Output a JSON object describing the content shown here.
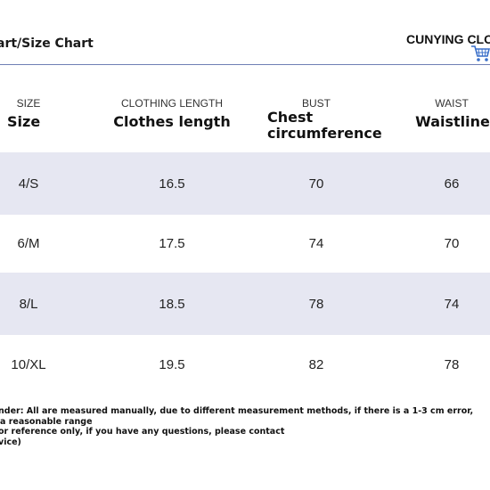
{
  "header": {
    "title": "art/Size Chart",
    "brand": "CUNYING CLO",
    "cart_icon": "shopping-cart-icon"
  },
  "table": {
    "columns": [
      {
        "en": "SIZE",
        "zh": "Size"
      },
      {
        "en": "CLOTHING LENGTH",
        "zh": "Clothes length"
      },
      {
        "en": "BUST",
        "zh_line1": "Chest",
        "zh_line2": "circumference"
      },
      {
        "en": "WAIST",
        "zh": "Waistline"
      }
    ],
    "rows": [
      {
        "size": "4/S",
        "length": "16.5",
        "bust": "70",
        "waist": "66"
      },
      {
        "size": "6/M",
        "length": "17.5",
        "bust": "74",
        "waist": "70"
      },
      {
        "size": "8/L",
        "length": "18.5",
        "bust": "78",
        "waist": "74"
      },
      {
        "size": "10/XL",
        "length": "19.5",
        "bust": "82",
        "waist": "78"
      }
    ]
  },
  "notes": {
    "line1": "nder: All are measured manually, due to different measurement methods, if there is a 1-3 cm error,",
    "line2": "a reasonable range",
    "line3": "or reference only, if you have any questions, please contact",
    "line4": "vice)"
  },
  "colors": {
    "row_shade": "#e6e7f2",
    "rule": "#6f7fb5",
    "cart": "#3a6fc9"
  }
}
